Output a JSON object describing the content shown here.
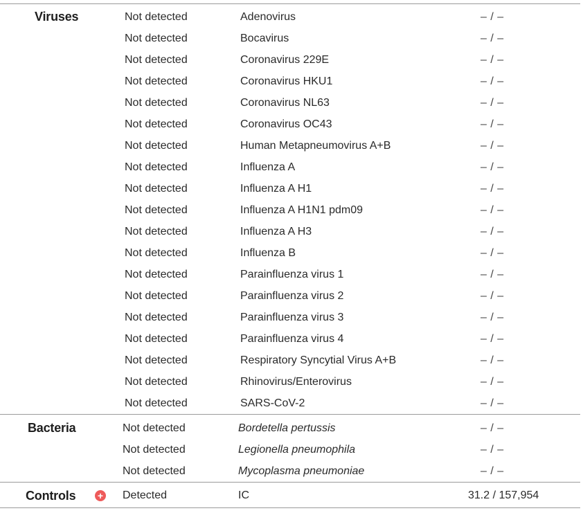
{
  "sections": [
    {
      "label": "Viruses",
      "rows": [
        {
          "result": "Not detected",
          "target": "Adenovirus",
          "value": "– / –"
        },
        {
          "result": "Not detected",
          "target": "Bocavirus",
          "value": "– / –"
        },
        {
          "result": "Not detected",
          "target": "Coronavirus 229E",
          "value": "– / –"
        },
        {
          "result": "Not detected",
          "target": "Coronavirus HKU1",
          "value": "– / –"
        },
        {
          "result": "Not detected",
          "target": "Coronavirus NL63",
          "value": "– / –"
        },
        {
          "result": "Not detected",
          "target": "Coronavirus OC43",
          "value": "– / –"
        },
        {
          "result": "Not detected",
          "target": "Human Metapneumovirus A+B",
          "value": "– / –"
        },
        {
          "result": "Not detected",
          "target": "Influenza A",
          "value": "– / –"
        },
        {
          "result": "Not detected",
          "target": "Influenza A H1",
          "value": "– / –"
        },
        {
          "result": "Not detected",
          "target": "Influenza A H1N1 pdm09",
          "value": "– / –"
        },
        {
          "result": "Not detected",
          "target": "Influenza A H3",
          "value": "– / –"
        },
        {
          "result": "Not detected",
          "target": "Influenza B",
          "value": "– / –"
        },
        {
          "result": "Not detected",
          "target": "Parainfluenza virus 1",
          "value": "– / –"
        },
        {
          "result": "Not detected",
          "target": "Parainfluenza virus 2",
          "value": "– / –"
        },
        {
          "result": "Not detected",
          "target": "Parainfluenza virus 3",
          "value": "– / –"
        },
        {
          "result": "Not detected",
          "target": "Parainfluenza virus 4",
          "value": "– / –"
        },
        {
          "result": "Not detected",
          "target": "Respiratory Syncytial Virus A+B",
          "value": "– / –"
        },
        {
          "result": "Not detected",
          "target": "Rhinovirus/Enterovirus",
          "value": "– / –"
        },
        {
          "result": "Not detected",
          "target": "SARS-CoV-2",
          "value": "– / –"
        }
      ]
    },
    {
      "label": "Bacteria",
      "rows": [
        {
          "result": "Not detected",
          "target": "Bordetella pertussis",
          "value": "– / –"
        },
        {
          "result": "Not detected",
          "target": "Legionella pneumophila",
          "value": "– / –"
        },
        {
          "result": "Not detected",
          "target": "Mycoplasma pneumoniae",
          "value": "– / –"
        }
      ]
    },
    {
      "label": "Controls",
      "icon": "plus-circle-icon",
      "icon_color": "#ee5a5a",
      "rows": [
        {
          "result": "Detected",
          "target": "IC",
          "value": "31.2 / 157,954"
        }
      ]
    }
  ]
}
